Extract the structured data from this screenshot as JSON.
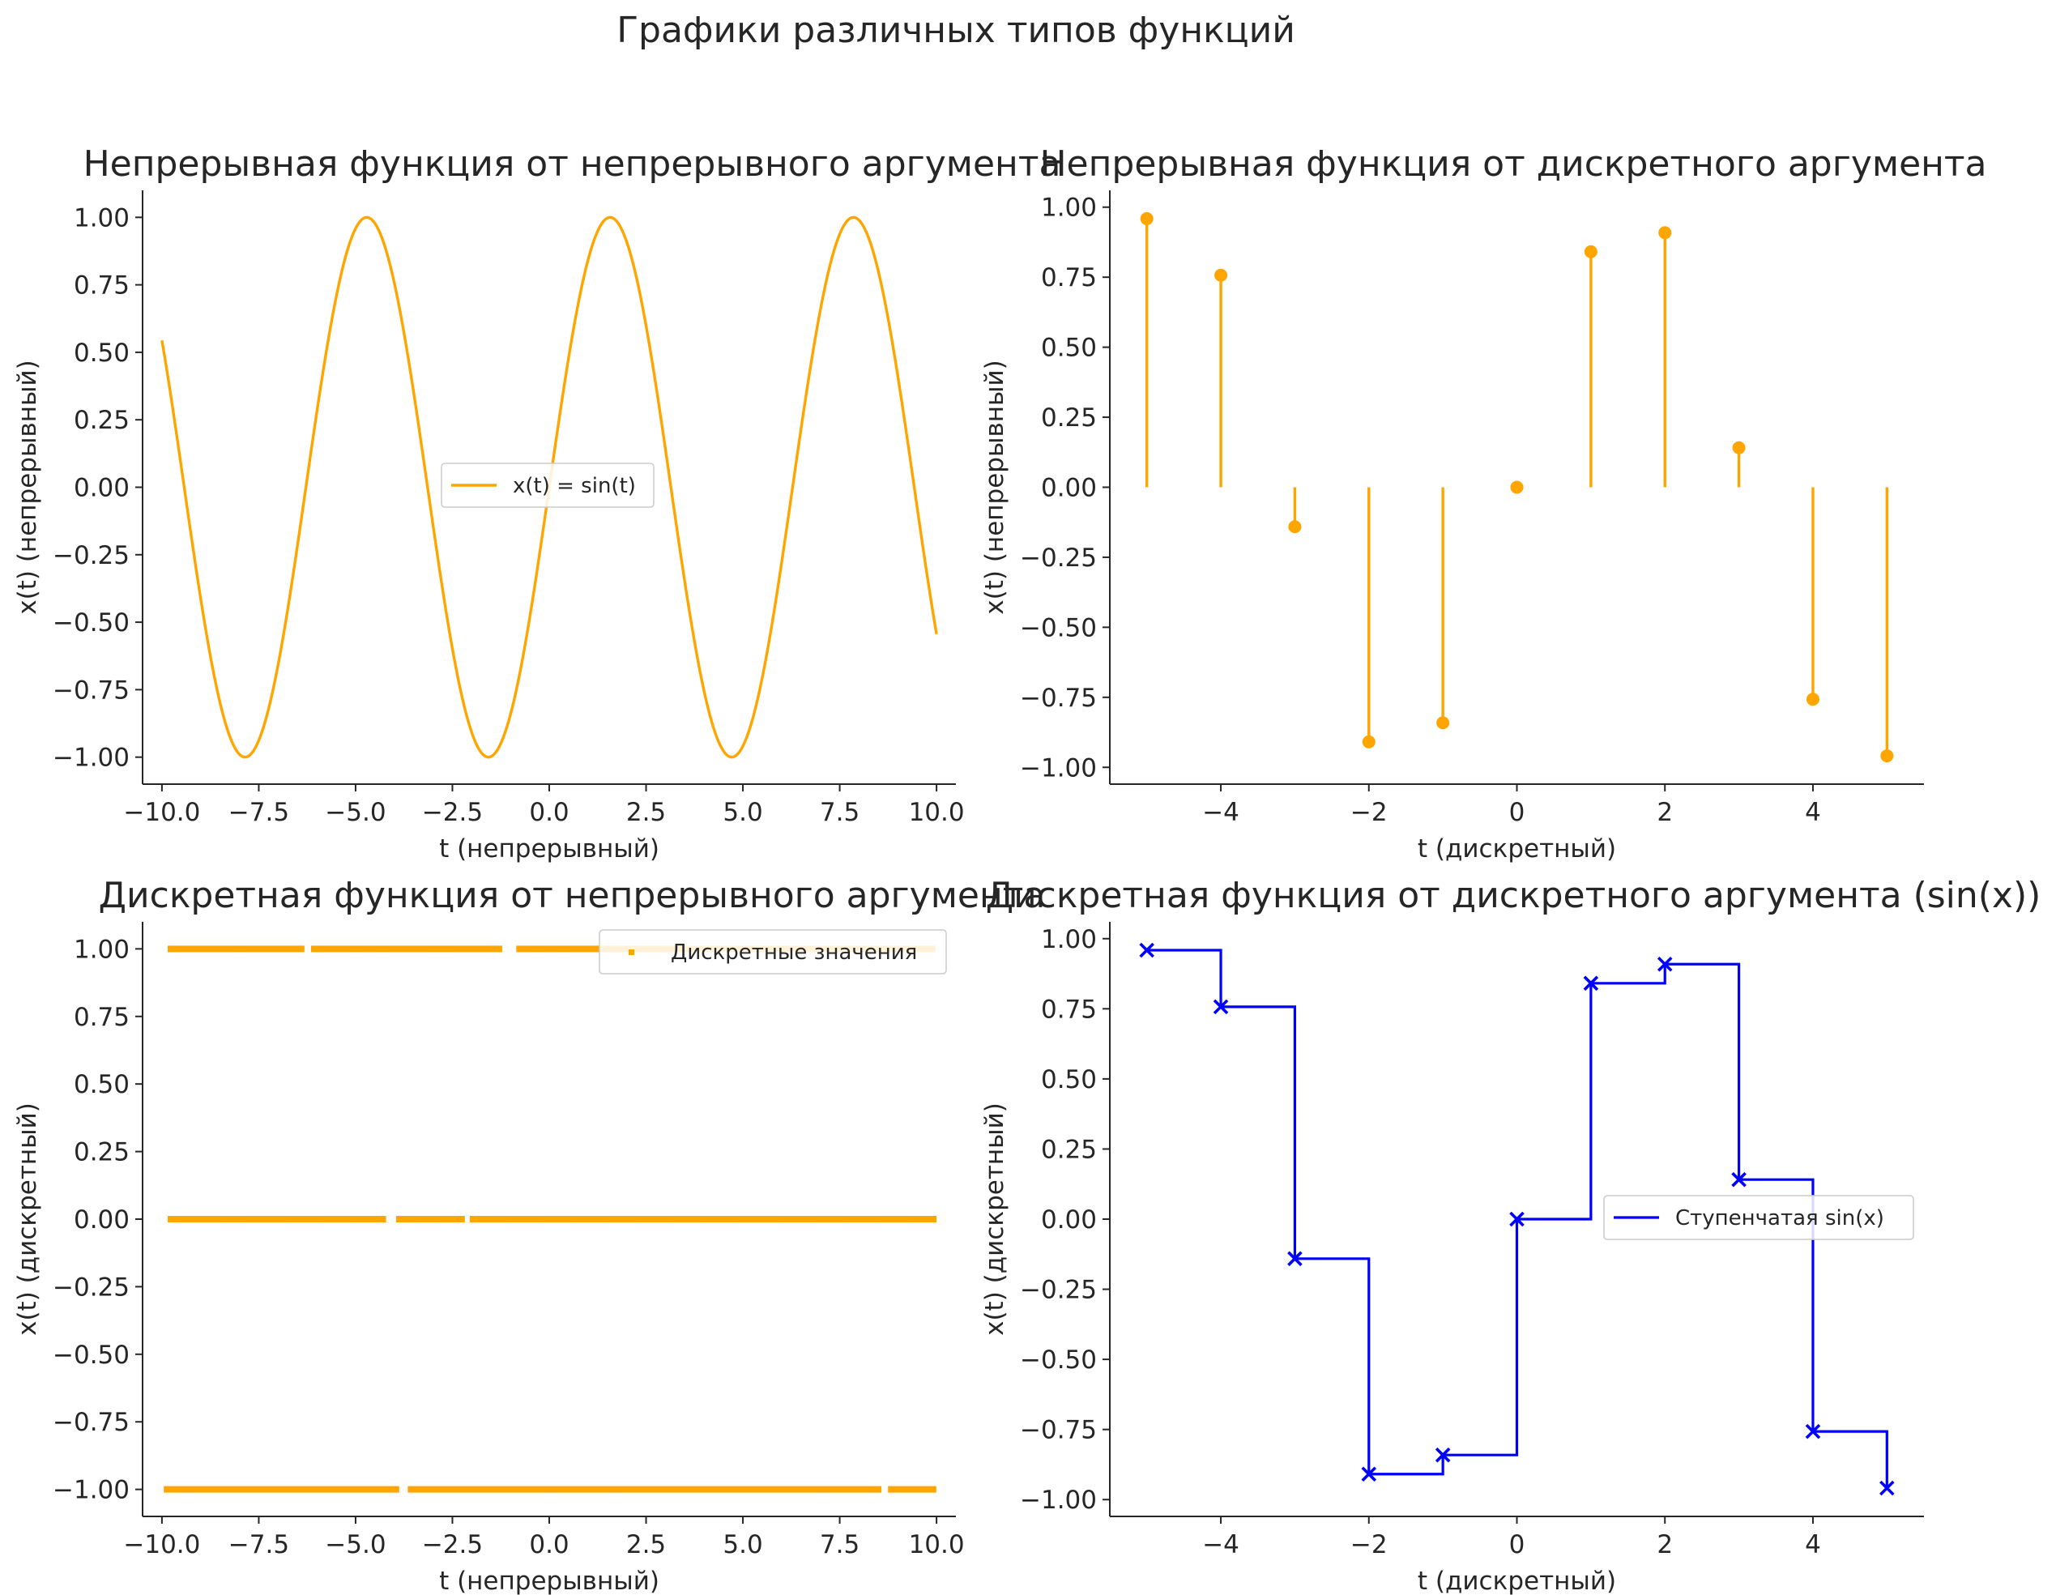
{
  "figure": {
    "suptitle": "Графики различных типов функций"
  },
  "chart_data": [
    {
      "type": "line",
      "title": "Непрерывная функция от непрерывного аргумента",
      "xlabel": "t (непрерывный)",
      "ylabel": "x(t) (непрерывный)",
      "xlim": [
        -10.5,
        10.5
      ],
      "ylim": [
        -1.1,
        1.1
      ],
      "xticks": [
        -10,
        -7.5,
        -5,
        -2.5,
        0,
        2.5,
        5,
        7.5,
        10
      ],
      "xtick_labels": [
        "−10.0",
        "−7.5",
        "−5.0",
        "−2.5",
        "0.0",
        "2.5",
        "5.0",
        "7.5",
        "10.0"
      ],
      "yticks": [
        -1,
        -0.75,
        -0.5,
        -0.25,
        0,
        0.25,
        0.5,
        0.75,
        1
      ],
      "ytick_labels": [
        "−1.00",
        "−0.75",
        "−0.50",
        "−0.25",
        "0.00",
        "0.25",
        "0.50",
        "0.75",
        "1.00"
      ],
      "legend_position": "center",
      "series": [
        {
          "name": "x(t) = sin(t)",
          "function": "sin(t)",
          "x_range": [
            -10,
            10
          ],
          "color": "#FFA500"
        }
      ]
    },
    {
      "type": "stem",
      "title": "Непрерывная функция от дискретного аргумента",
      "xlabel": "t (дискретный)",
      "ylabel": "x(t) (непрерывный)",
      "xlim": [
        -5.5,
        5.5
      ],
      "ylim": [
        -1.06,
        1.06
      ],
      "xticks": [
        -4,
        -2,
        0,
        2,
        4
      ],
      "xtick_labels": [
        "−4",
        "−2",
        "0",
        "2",
        "4"
      ],
      "yticks": [
        -1,
        -0.75,
        -0.5,
        -0.25,
        0,
        0.25,
        0.5,
        0.75,
        1
      ],
      "ytick_labels": [
        "−1.00",
        "−0.75",
        "−0.50",
        "−0.25",
        "0.00",
        "0.25",
        "0.50",
        "0.75",
        "1.00"
      ],
      "x": [
        -5,
        -4,
        -3,
        -2,
        -1,
        0,
        1,
        2,
        3,
        4,
        5
      ],
      "y": [
        0.959,
        0.757,
        -0.141,
        -0.909,
        -0.841,
        0.0,
        0.841,
        0.909,
        0.141,
        -0.757,
        -0.959
      ],
      "color": "#FFA500"
    },
    {
      "type": "scatter",
      "title": "Дискретная функция от непрерывного аргумента",
      "xlabel": "t (непрерывный)",
      "ylabel": "x(t) (дискретный)",
      "xlim": [
        -10.5,
        10.5
      ],
      "ylim": [
        -1.1,
        1.1
      ],
      "xticks": [
        -10,
        -7.5,
        -5,
        -2.5,
        0,
        2.5,
        5,
        7.5,
        10
      ],
      "xtick_labels": [
        "−10.0",
        "−7.5",
        "−5.0",
        "−2.5",
        "0.0",
        "2.5",
        "5.0",
        "7.5",
        "10.0"
      ],
      "yticks": [
        -1,
        -0.75,
        -0.5,
        -0.25,
        0,
        0.25,
        0.5,
        0.75,
        1
      ],
      "ytick_labels": [
        "−1.00",
        "−0.75",
        "−0.50",
        "−0.25",
        "0.00",
        "0.25",
        "0.50",
        "0.75",
        "1.00"
      ],
      "legend_position": "upper right",
      "series": [
        {
          "name": "Дискретные значения",
          "color": "#FFA500",
          "levels": [
            {
              "y": 1.0,
              "x_segments": [
                [
                  -9.8,
                  -6.3
                ],
                [
                  -6.1,
                  -1.2
                ],
                [
                  -0.8,
                  10.0
                ]
              ]
            },
            {
              "y": 0.0,
              "x_segments": [
                [
                  -9.8,
                  -4.2
                ],
                [
                  -3.9,
                  -2.2
                ],
                [
                  -2.0,
                  10.0
                ]
              ]
            },
            {
              "y": -1.0,
              "x_segments": [
                [
                  -9.9,
                  -3.9
                ],
                [
                  -3.6,
                  8.6
                ],
                [
                  8.8,
                  10.0
                ]
              ]
            }
          ]
        }
      ]
    },
    {
      "type": "step",
      "title": "Дискретная функция от дискретного аргумента (sin(x))",
      "xlabel": "t (дискретный)",
      "ylabel": "x(t) (дискретный)",
      "xlim": [
        -5.5,
        5.5
      ],
      "ylim": [
        -1.06,
        1.06
      ],
      "xticks": [
        -4,
        -2,
        0,
        2,
        4
      ],
      "xtick_labels": [
        "−4",
        "−2",
        "0",
        "2",
        "4"
      ],
      "yticks": [
        -1,
        -0.75,
        -0.5,
        -0.25,
        0,
        0.25,
        0.5,
        0.75,
        1
      ],
      "ytick_labels": [
        "−1.00",
        "−0.75",
        "−0.50",
        "−0.25",
        "0.00",
        "0.25",
        "0.50",
        "0.75",
        "1.00"
      ],
      "legend_position": "center right",
      "x": [
        -5,
        -4,
        -3,
        -2,
        -1,
        0,
        1,
        2,
        3,
        4,
        5
      ],
      "y": [
        0.959,
        0.757,
        -0.141,
        -0.909,
        -0.841,
        0.0,
        0.841,
        0.909,
        0.141,
        -0.757,
        -0.959
      ],
      "series": [
        {
          "name": "Ступенчатая sin(x)",
          "color": "#0000FF",
          "marker": "x"
        }
      ]
    }
  ]
}
